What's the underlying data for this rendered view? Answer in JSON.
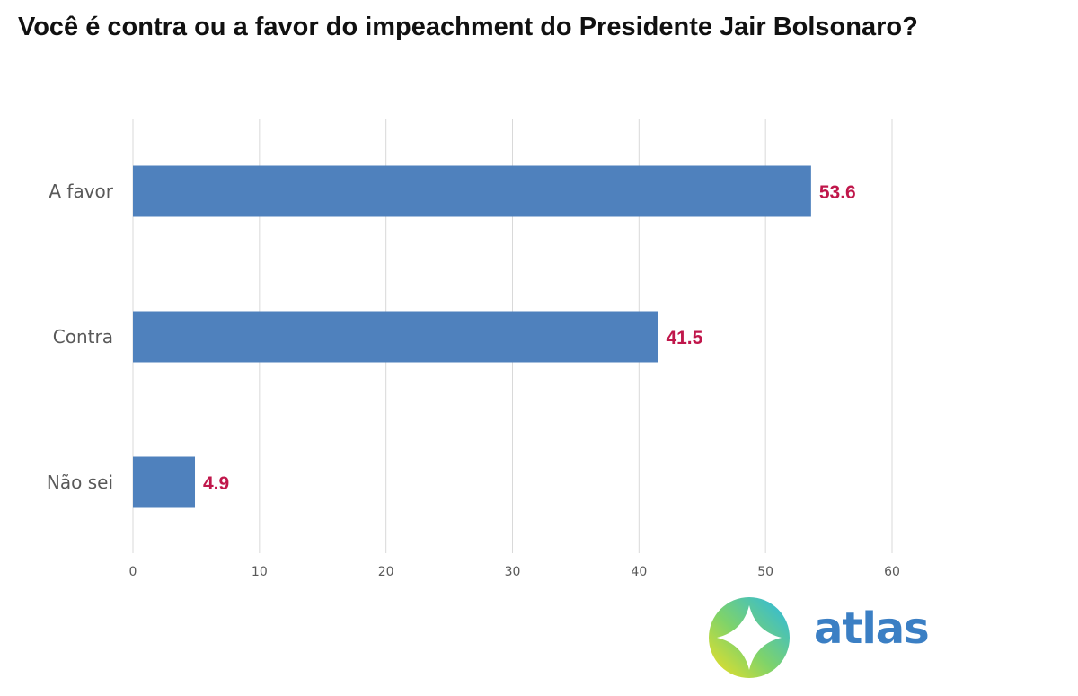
{
  "chart_data": {
    "type": "bar",
    "orientation": "horizontal",
    "title": "Você é contra ou a favor do impeachment do Presidente Jair Bolsonaro?",
    "categories": [
      "A favor",
      "Contra",
      "Não sei"
    ],
    "values": [
      53.6,
      41.5,
      4.9
    ],
    "value_labels": [
      "53.6",
      "41.5",
      "4.9"
    ],
    "x_ticks": [
      "0",
      "10",
      "20",
      "30",
      "40",
      "50",
      "60"
    ],
    "xlim": [
      0,
      60
    ],
    "xlabel": "",
    "ylabel": "",
    "grid": "vertical",
    "legend": "none",
    "colors": {
      "bar": "#4f81bd",
      "value_label": "#c0174b",
      "grid": "#d9d9d9",
      "axis_text": "#595959"
    }
  },
  "brand": {
    "name": "atlas",
    "logo_icon": "atlas-compass-logo-icon"
  }
}
